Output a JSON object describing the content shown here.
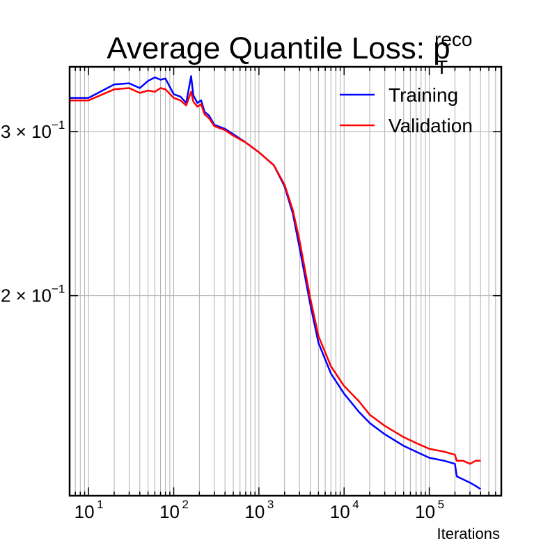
{
  "title": {
    "main": "Average Quantile Loss: p",
    "superscript": "reco",
    "subscript": "T"
  },
  "chart_data": {
    "type": "line",
    "xlabel": "Iterations",
    "ylabel": "",
    "xscale": "log",
    "yscale": "log",
    "xlim": [
      6,
      700000
    ],
    "ylim": [
      0.122,
      0.352
    ],
    "grid": true,
    "legend_position": "top-right",
    "x_ticks": [
      {
        "value": 10,
        "base": "10",
        "exp": "1"
      },
      {
        "value": 100,
        "base": "10",
        "exp": "2"
      },
      {
        "value": 1000,
        "base": "10",
        "exp": "3"
      },
      {
        "value": 10000,
        "base": "10",
        "exp": "4"
      },
      {
        "value": 100000,
        "base": "10",
        "exp": "5"
      }
    ],
    "y_ticks": [
      {
        "value": 0.2,
        "mantissa": "2 × 10",
        "exp": "−1"
      },
      {
        "value": 0.3,
        "mantissa": "3 × 10",
        "exp": "−1"
      }
    ],
    "series": [
      {
        "name": "Training",
        "color": "#0000ff",
        "x": [
          6,
          10,
          20,
          30,
          40,
          50,
          60,
          70,
          80,
          100,
          120,
          140,
          160,
          170,
          190,
          210,
          230,
          260,
          300,
          400,
          500,
          700,
          1000,
          1500,
          2000,
          2500,
          3000,
          4000,
          5000,
          7000,
          10000,
          15000,
          20000,
          30000,
          50000,
          70000,
          100000,
          150000,
          200000,
          210000,
          250000,
          300000,
          350000,
          400000
        ],
        "y": [
          0.326,
          0.326,
          0.337,
          0.338,
          0.334,
          0.34,
          0.343,
          0.341,
          0.342,
          0.329,
          0.327,
          0.322,
          0.344,
          0.328,
          0.322,
          0.324,
          0.315,
          0.312,
          0.305,
          0.302,
          0.298,
          0.292,
          0.285,
          0.276,
          0.262,
          0.245,
          0.225,
          0.196,
          0.178,
          0.165,
          0.157,
          0.15,
          0.146,
          0.142,
          0.138,
          0.136,
          0.134,
          0.133,
          0.132,
          0.128,
          0.127,
          0.126,
          0.125,
          0.124
        ]
      },
      {
        "name": "Validation",
        "color": "#ff0000",
        "x": [
          6,
          10,
          20,
          30,
          40,
          50,
          60,
          70,
          80,
          100,
          120,
          140,
          160,
          170,
          190,
          210,
          230,
          260,
          300,
          400,
          500,
          700,
          1000,
          1500,
          2000,
          2500,
          3000,
          4000,
          5000,
          7000,
          10000,
          15000,
          20000,
          30000,
          50000,
          70000,
          100000,
          150000,
          200000,
          210000,
          250000,
          300000,
          350000,
          400000
        ],
        "y": [
          0.324,
          0.324,
          0.333,
          0.334,
          0.33,
          0.332,
          0.331,
          0.334,
          0.333,
          0.326,
          0.324,
          0.32,
          0.331,
          0.323,
          0.319,
          0.321,
          0.313,
          0.31,
          0.304,
          0.301,
          0.297,
          0.292,
          0.285,
          0.276,
          0.263,
          0.247,
          0.229,
          0.199,
          0.181,
          0.168,
          0.16,
          0.154,
          0.149,
          0.145,
          0.141,
          0.139,
          0.137,
          0.136,
          0.135,
          0.133,
          0.133,
          0.132,
          0.133,
          0.133
        ]
      }
    ]
  }
}
